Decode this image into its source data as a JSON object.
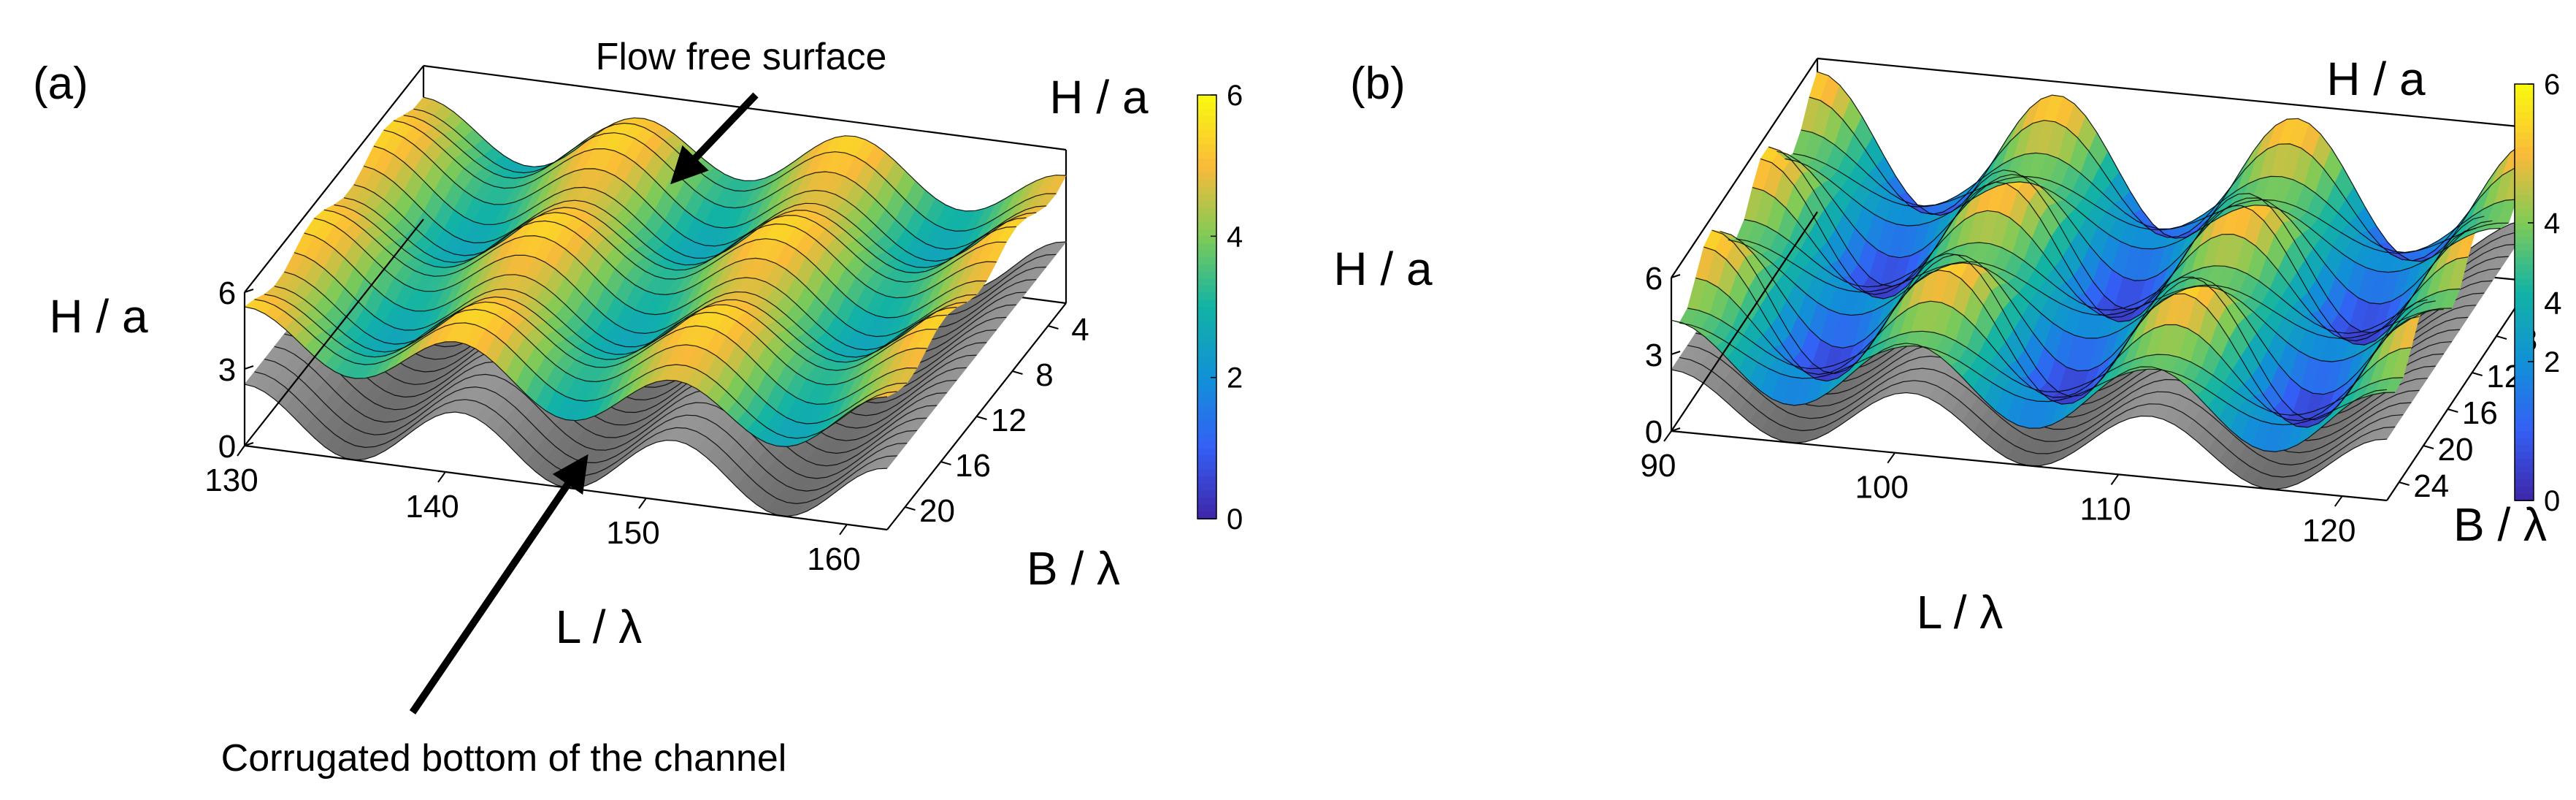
{
  "chart_data": [
    {
      "type": "surface",
      "panel_label": "(a)",
      "annotations": [
        {
          "id": "free-surface",
          "text": "Flow free surface"
        },
        {
          "id": "bottom",
          "text": "Corrugated bottom of the channel"
        }
      ],
      "xlabel": "L / λ",
      "ylabel": "B / λ",
      "zlabel": "H / a",
      "xlim": [
        130,
        162
      ],
      "ylim": [
        2,
        22
      ],
      "zlim": [
        0,
        6
      ],
      "x_ticks": [
        "130",
        "140",
        "150",
        "160"
      ],
      "y_ticks": [
        "4",
        "8",
        "12",
        "16",
        "20"
      ],
      "z_ticks": [
        "0",
        "3",
        "6"
      ],
      "colorbar": {
        "label": "H / a",
        "range": [
          0,
          6
        ],
        "ticks": [
          "0",
          "2",
          "4",
          "6"
        ],
        "colormap": "parula"
      },
      "colors": {
        "bottom_surface": "#8a8a8a",
        "mesh_lines": "#000000"
      },
      "grid": false,
      "surfaces": [
        {
          "name": "bottom",
          "mean": 1.2,
          "amplitude": 1.2,
          "wavelength_x": 10.7,
          "phase_x": 130,
          "variation_y": "none"
        },
        {
          "name": "free-surface",
          "mean": 4.0,
          "amplitude": 1.1,
          "wavelength_x": 10.7,
          "phase_x": 130,
          "variation_y": "mild"
        }
      ]
    },
    {
      "type": "surface",
      "panel_label": "(b)",
      "xlabel": "L / λ",
      "ylabel": "B / λ",
      "zlabel": "H / a",
      "xlim": [
        90,
        122
      ],
      "ylim": [
        2,
        26
      ],
      "zlim": [
        0,
        6
      ],
      "x_ticks": [
        "90",
        "100",
        "110",
        "120"
      ],
      "y_ticks": [
        "4",
        "8",
        "12",
        "16",
        "20",
        "24"
      ],
      "z_ticks": [
        "0",
        "3",
        "6"
      ],
      "colorbar": {
        "label": "H / a",
        "range": [
          0,
          6
        ],
        "ticks": [
          "0",
          "2",
          "4",
          "6"
        ],
        "colormap": "parula"
      },
      "colors": {
        "bottom_surface": "#8a8a8a",
        "mesh_lines": "#000000"
      },
      "grid": false,
      "surfaces": [
        {
          "name": "bottom",
          "mean": 1.2,
          "amplitude": 1.2,
          "wavelength_x": 10.7,
          "phase_x": 90,
          "variation_y": "none"
        },
        {
          "name": "free-surface",
          "mean": 2.9,
          "amplitude": 1.7,
          "wavelength_x": 10.7,
          "phase_x": 90,
          "variation_y": "strong"
        }
      ]
    }
  ]
}
